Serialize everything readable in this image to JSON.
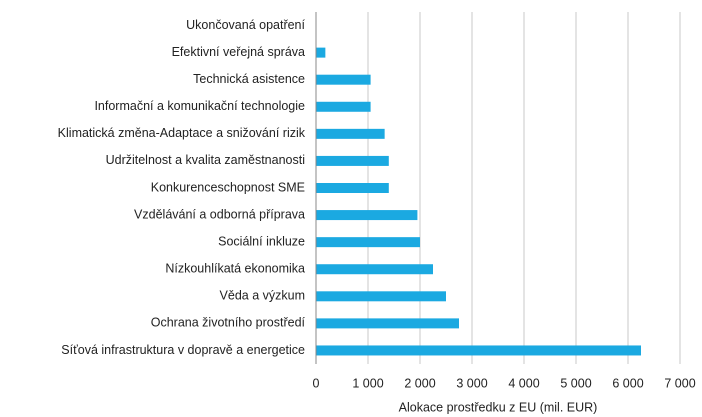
{
  "chart_data": {
    "type": "bar",
    "orientation": "horizontal",
    "x_label": "Alokace prostředku z EU (mil. EUR)",
    "categories": [
      "Ukončovaná opatření",
      "Efektivní veřejná správa",
      "Technická asistence",
      "Informační a komunikační technologie",
      "Klimatická změna-Adaptace a snižování rizik",
      "Udržitelnost a kvalita zaměstnanosti",
      "Konkurenceschopnost SME",
      "Vzdělávání a odborná příprava",
      "Sociální inkluze",
      "Nízkouhlíkatá ekonomika",
      "Věda a výzkum",
      "Ochrana životního prostředí",
      "Síťová infrastruktura v dopravě a energetice"
    ],
    "values": [
      0,
      180,
      1050,
      1050,
      1320,
      1400,
      1400,
      1950,
      2000,
      2250,
      2500,
      2750,
      6250
    ],
    "color": "#1ba9e1",
    "xlim": [
      0,
      7000
    ],
    "xticks": [
      0,
      {
        "value": 1000,
        "label": "1 000"
      },
      {
        "value": 2000,
        "label": "2 000"
      },
      {
        "value": 3000,
        "label": "3 000"
      },
      {
        "value": 4000,
        "label": "4 000"
      },
      {
        "value": 5000,
        "label": "5 000"
      },
      {
        "value": 6000,
        "label": "6 000"
      },
      {
        "value": 7000,
        "label": "7 000"
      }
    ],
    "grid": true
  }
}
